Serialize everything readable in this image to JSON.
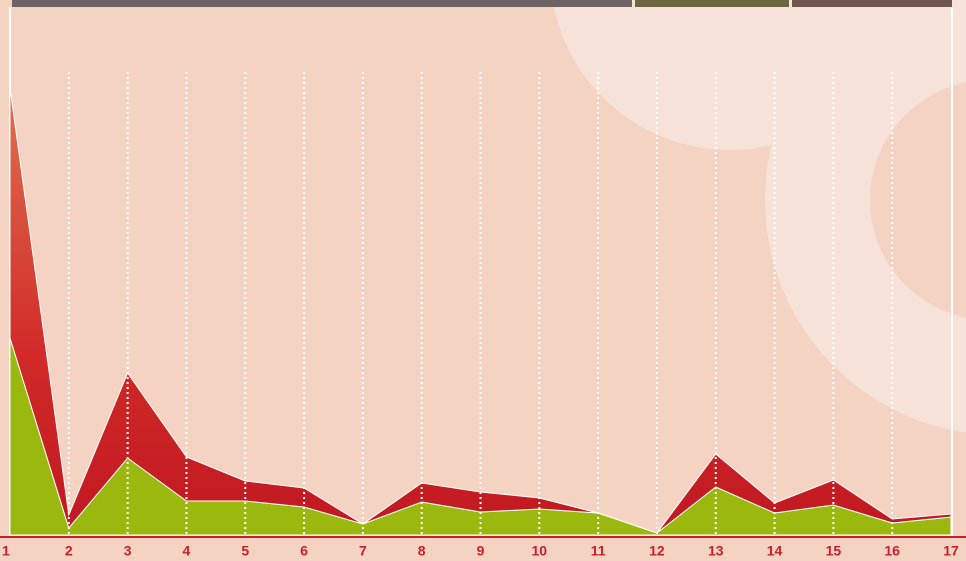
{
  "chart_data": {
    "type": "stacked-area",
    "categories": [
      "1",
      "2",
      "3",
      "4",
      "5",
      "6",
      "7",
      "8",
      "9",
      "10",
      "11",
      "12",
      "13",
      "14",
      "15",
      "16",
      "17"
    ],
    "series": [
      {
        "color": "#9ab80e",
        "values": [
          197,
          7,
          77,
          34,
          34,
          28,
          11,
          33,
          23,
          26,
          22,
          2,
          48,
          22,
          30,
          12,
          18
        ]
      },
      {
        "color": "#c8202a",
        "values": [
          250,
          13,
          85,
          44,
          20,
          19,
          0,
          19,
          20,
          11,
          0,
          0,
          33,
          10,
          25,
          4,
          3
        ]
      }
    ],
    "ylim": [
      0,
      447
    ]
  }
}
